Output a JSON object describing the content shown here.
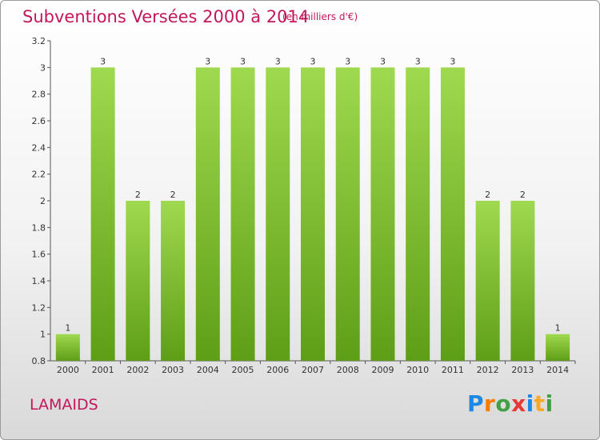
{
  "chart_data": {
    "type": "bar",
    "title": "Subventions Versées 2000 à 2014",
    "subtitle": "(en milliers d'€)",
    "categories": [
      "2000",
      "2001",
      "2002",
      "2003",
      "2004",
      "2005",
      "2006",
      "2007",
      "2008",
      "2009",
      "2010",
      "2011",
      "2012",
      "2013",
      "2014"
    ],
    "values": [
      1,
      3,
      2,
      2,
      3,
      3,
      3,
      3,
      3,
      3,
      3,
      3,
      2,
      2,
      1
    ],
    "data_labels": [
      "1",
      "3",
      "2",
      "2",
      "3",
      "3",
      "3",
      "3",
      "3",
      "3",
      "3",
      "3",
      "2",
      "2",
      "1"
    ],
    "ylim": [
      0.8,
      3.2
    ],
    "yticks": [
      0.8,
      1,
      1.2,
      1.4,
      1.6,
      1.8,
      2,
      2.2,
      2.4,
      2.6,
      2.8,
      3,
      3.2
    ],
    "ytick_labels": [
      "0.8",
      "1",
      "1.2",
      "1.4",
      "1.6",
      "1.8",
      "2",
      "2.2",
      "2.4",
      "2.6",
      "2.8",
      "3",
      "3.2"
    ],
    "grid": false,
    "legend": "none",
    "bar_color": "#7cbd2e"
  },
  "footer": {
    "place": "LAMAIDS",
    "logo": [
      {
        "ch": "P",
        "color": "#1e88e5"
      },
      {
        "ch": "r",
        "color": "#f57c00"
      },
      {
        "ch": "o",
        "color": "#43a047"
      },
      {
        "ch": "x",
        "color": "#e53935"
      },
      {
        "ch": "i",
        "color": "#1e88e5"
      },
      {
        "ch": "t",
        "color": "#f9a825"
      },
      {
        "ch": "i",
        "color": "#43a047"
      }
    ]
  }
}
